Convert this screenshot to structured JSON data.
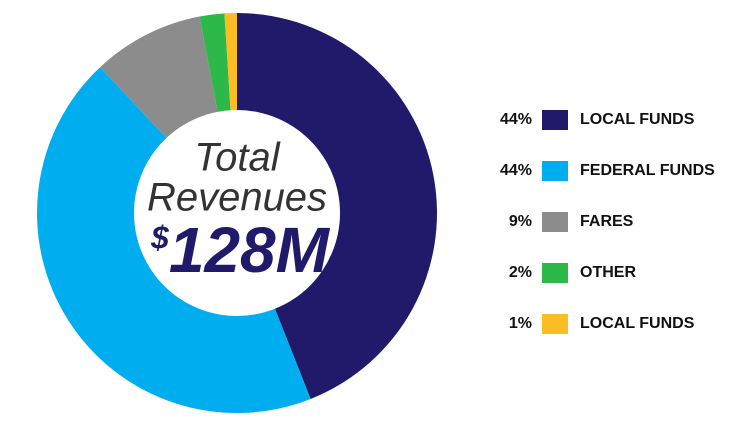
{
  "chart_data": {
    "type": "pie",
    "donut": true,
    "categories": [
      "LOCAL FUNDS",
      "FEDERAL FUNDS",
      "FARES",
      "OTHER",
      "LOCAL FUNDS"
    ],
    "values": [
      44,
      44,
      9,
      2,
      1
    ],
    "value_labels": [
      "44%",
      "44%",
      "9%",
      "2%",
      "1%"
    ],
    "colors": [
      "#211a6b",
      "#00aeef",
      "#8c8c8c",
      "#2db84a",
      "#fbbc24"
    ],
    "center_label": [
      "Total",
      "Revenues"
    ],
    "center_value_prefix": "$",
    "center_value": "128M"
  }
}
